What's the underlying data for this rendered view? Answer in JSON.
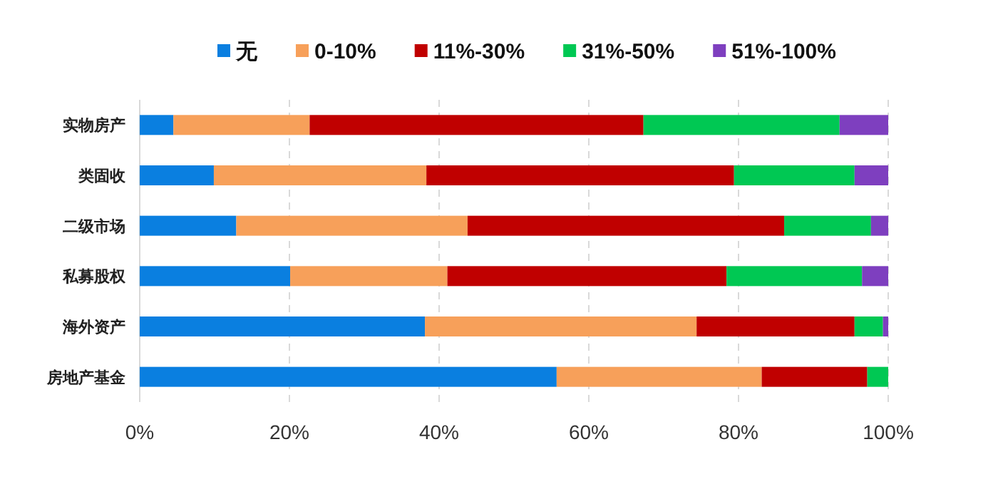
{
  "chart_data": {
    "type": "bar",
    "orientation": "horizontal",
    "stacked": true,
    "categories": [
      "实物房产",
      "类固收",
      "二级市场",
      "私募股权",
      "海外资产",
      "房地产基金"
    ],
    "series": [
      {
        "name": "无",
        "color": "#0a7fe0",
        "values": [
          4.5,
          9.9,
          12.9,
          20.1,
          38.1,
          55.7
        ]
      },
      {
        "name": "0-10%",
        "color": "#f7a05a",
        "values": [
          18.2,
          28.4,
          30.9,
          21.0,
          36.3,
          27.4
        ]
      },
      {
        "name": "11%-30%",
        "color": "#c00000",
        "values": [
          44.6,
          41.1,
          42.3,
          37.3,
          21.1,
          14.1
        ]
      },
      {
        "name": "31%-50%",
        "color": "#00c853",
        "values": [
          26.2,
          16.1,
          11.6,
          18.1,
          3.8,
          2.8
        ]
      },
      {
        "name": "51%-100%",
        "color": "#7e3fbf",
        "values": [
          6.5,
          4.5,
          2.3,
          3.5,
          0.7,
          0
        ]
      }
    ],
    "xlim": [
      0,
      100
    ],
    "xticks": [
      {
        "value": 0,
        "label": "0%"
      },
      {
        "value": 20,
        "label": "20%"
      },
      {
        "value": 40,
        "label": "40%"
      },
      {
        "value": 60,
        "label": "60%"
      },
      {
        "value": 80,
        "label": "80%"
      },
      {
        "value": 100,
        "label": "100%"
      }
    ],
    "grid": "x",
    "legend": "top"
  }
}
